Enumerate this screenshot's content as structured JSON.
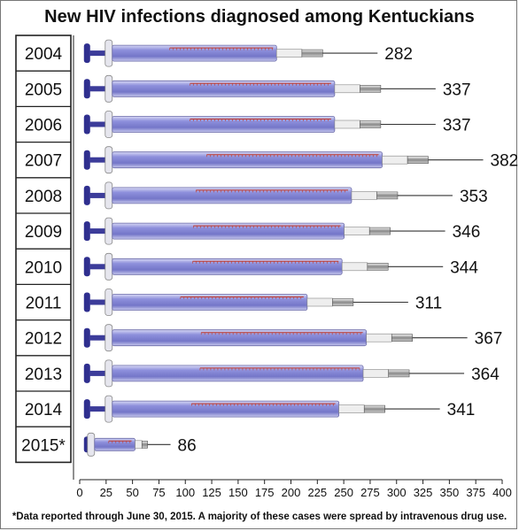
{
  "title": "New HIV infections diagnosed among Kentuckians",
  "footnote": "*Data reported through June 30, 2015. A majority of these cases were spread by intravenous drug use.",
  "chart_data": {
    "type": "bar",
    "title": "New HIV infections diagnosed among Kentuckians",
    "categories": [
      "2004",
      "2005",
      "2006",
      "2007",
      "2008",
      "2009",
      "2010",
      "2011",
      "2012",
      "2013",
      "2014",
      "2015*"
    ],
    "values": [
      282,
      337,
      337,
      382,
      353,
      346,
      344,
      311,
      367,
      364,
      341,
      86
    ],
    "xticks": [
      "0",
      "25",
      "50",
      "75",
      "100",
      "125",
      "150",
      "175",
      "200",
      "225",
      "250",
      "275",
      "300",
      "325",
      "350",
      "375",
      "400"
    ],
    "xlim": [
      0,
      400
    ],
    "xlabel": "",
    "ylabel": "",
    "grid": false,
    "mark_style": "syringe",
    "colors": {
      "barrel": "#8e90dc",
      "plunger": "#2f2f8f",
      "scale": "#c0392b"
    }
  }
}
